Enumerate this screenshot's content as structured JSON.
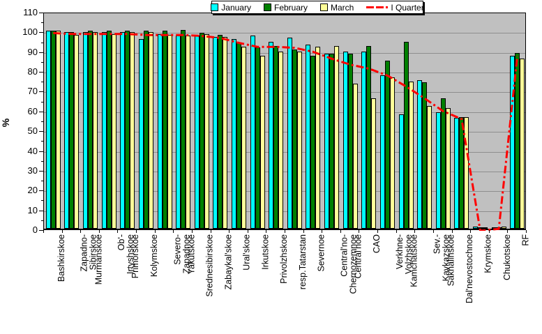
{
  "chart_data": {
    "type": "bar",
    "title": "",
    "xlabel": "",
    "ylabel": "%",
    "ylim": [
      0,
      110
    ],
    "ytick_step": 10,
    "ytick_minor_step": 5,
    "grid": true,
    "legend_position": "top-center",
    "plot_bg_color": "#C0C0C0",
    "grid_color": "#8E8E8E",
    "categories": [
      "Bashkirskoe",
      "Zapadno-\nSibirskoe",
      "Murmanskoe",
      "Ob'-\nIrtyshskoe",
      "Primorskoe",
      "Kolymskoe",
      "Severo-\nZapadnoe",
      "Yakutskoe",
      "Srednesibirskoe",
      "Zabaykal'skoe",
      "Ural'skoe",
      "Irkutskoe",
      "Privolzhskoe",
      "resp.Tatarstan",
      "Severnoe",
      "Central'no-\nChernozemnoe",
      "Central'noe",
      "CAO",
      "Verkhne-\nVolzhskoe",
      "Kamchatskoe",
      "Sev.-\nKavkazskoe",
      "Sakhalinskoe",
      "Dal'nevostochnoe",
      "Krymskoe",
      "Chukotskoe",
      "RF"
    ],
    "series": [
      {
        "name": "January",
        "type": "bar",
        "color": "#00FFFF",
        "values": [
          100,
          99.5,
          99.5,
          99.5,
          99.5,
          96,
          98.5,
          97.5,
          97.5,
          97,
          96,
          97.5,
          94.5,
          96.5,
          93,
          88.5,
          89.5,
          89.5,
          77.5,
          58,
          75,
          59,
          56,
          1,
          0.5,
          87.5
        ]
      },
      {
        "name": "February",
        "type": "bar",
        "color": "#008000",
        "values": [
          100,
          99.5,
          100,
          100,
          100,
          100,
          100,
          100.5,
          99,
          98,
          94,
          91.5,
          92.5,
          90.5,
          87.5,
          88.5,
          88.5,
          92.5,
          85,
          94.5,
          74,
          66,
          56.5,
          0.5,
          0.5,
          89
        ]
      },
      {
        "name": "March",
        "type": "bar",
        "color": "#FFFF99",
        "values": [
          100,
          98,
          99.5,
          98.5,
          99.5,
          99.5,
          98,
          97.5,
          98.5,
          97,
          92,
          87.5,
          89.5,
          89.5,
          92,
          92.5,
          73.5,
          66,
          76.5,
          74.5,
          62,
          61,
          56.5,
          0.5,
          1,
          86
        ]
      },
      {
        "name": "I Quarter",
        "type": "line",
        "color": "#FF0000",
        "style": "dash-dot",
        "values": [
          100,
          99.5,
          99.5,
          99.5,
          99.5,
          99,
          99,
          99,
          98.5,
          97.5,
          95,
          93,
          93,
          92.5,
          90.5,
          87,
          84,
          82,
          78.5,
          73,
          67,
          60.5,
          56.5,
          0,
          1,
          88.5
        ]
      }
    ]
  }
}
